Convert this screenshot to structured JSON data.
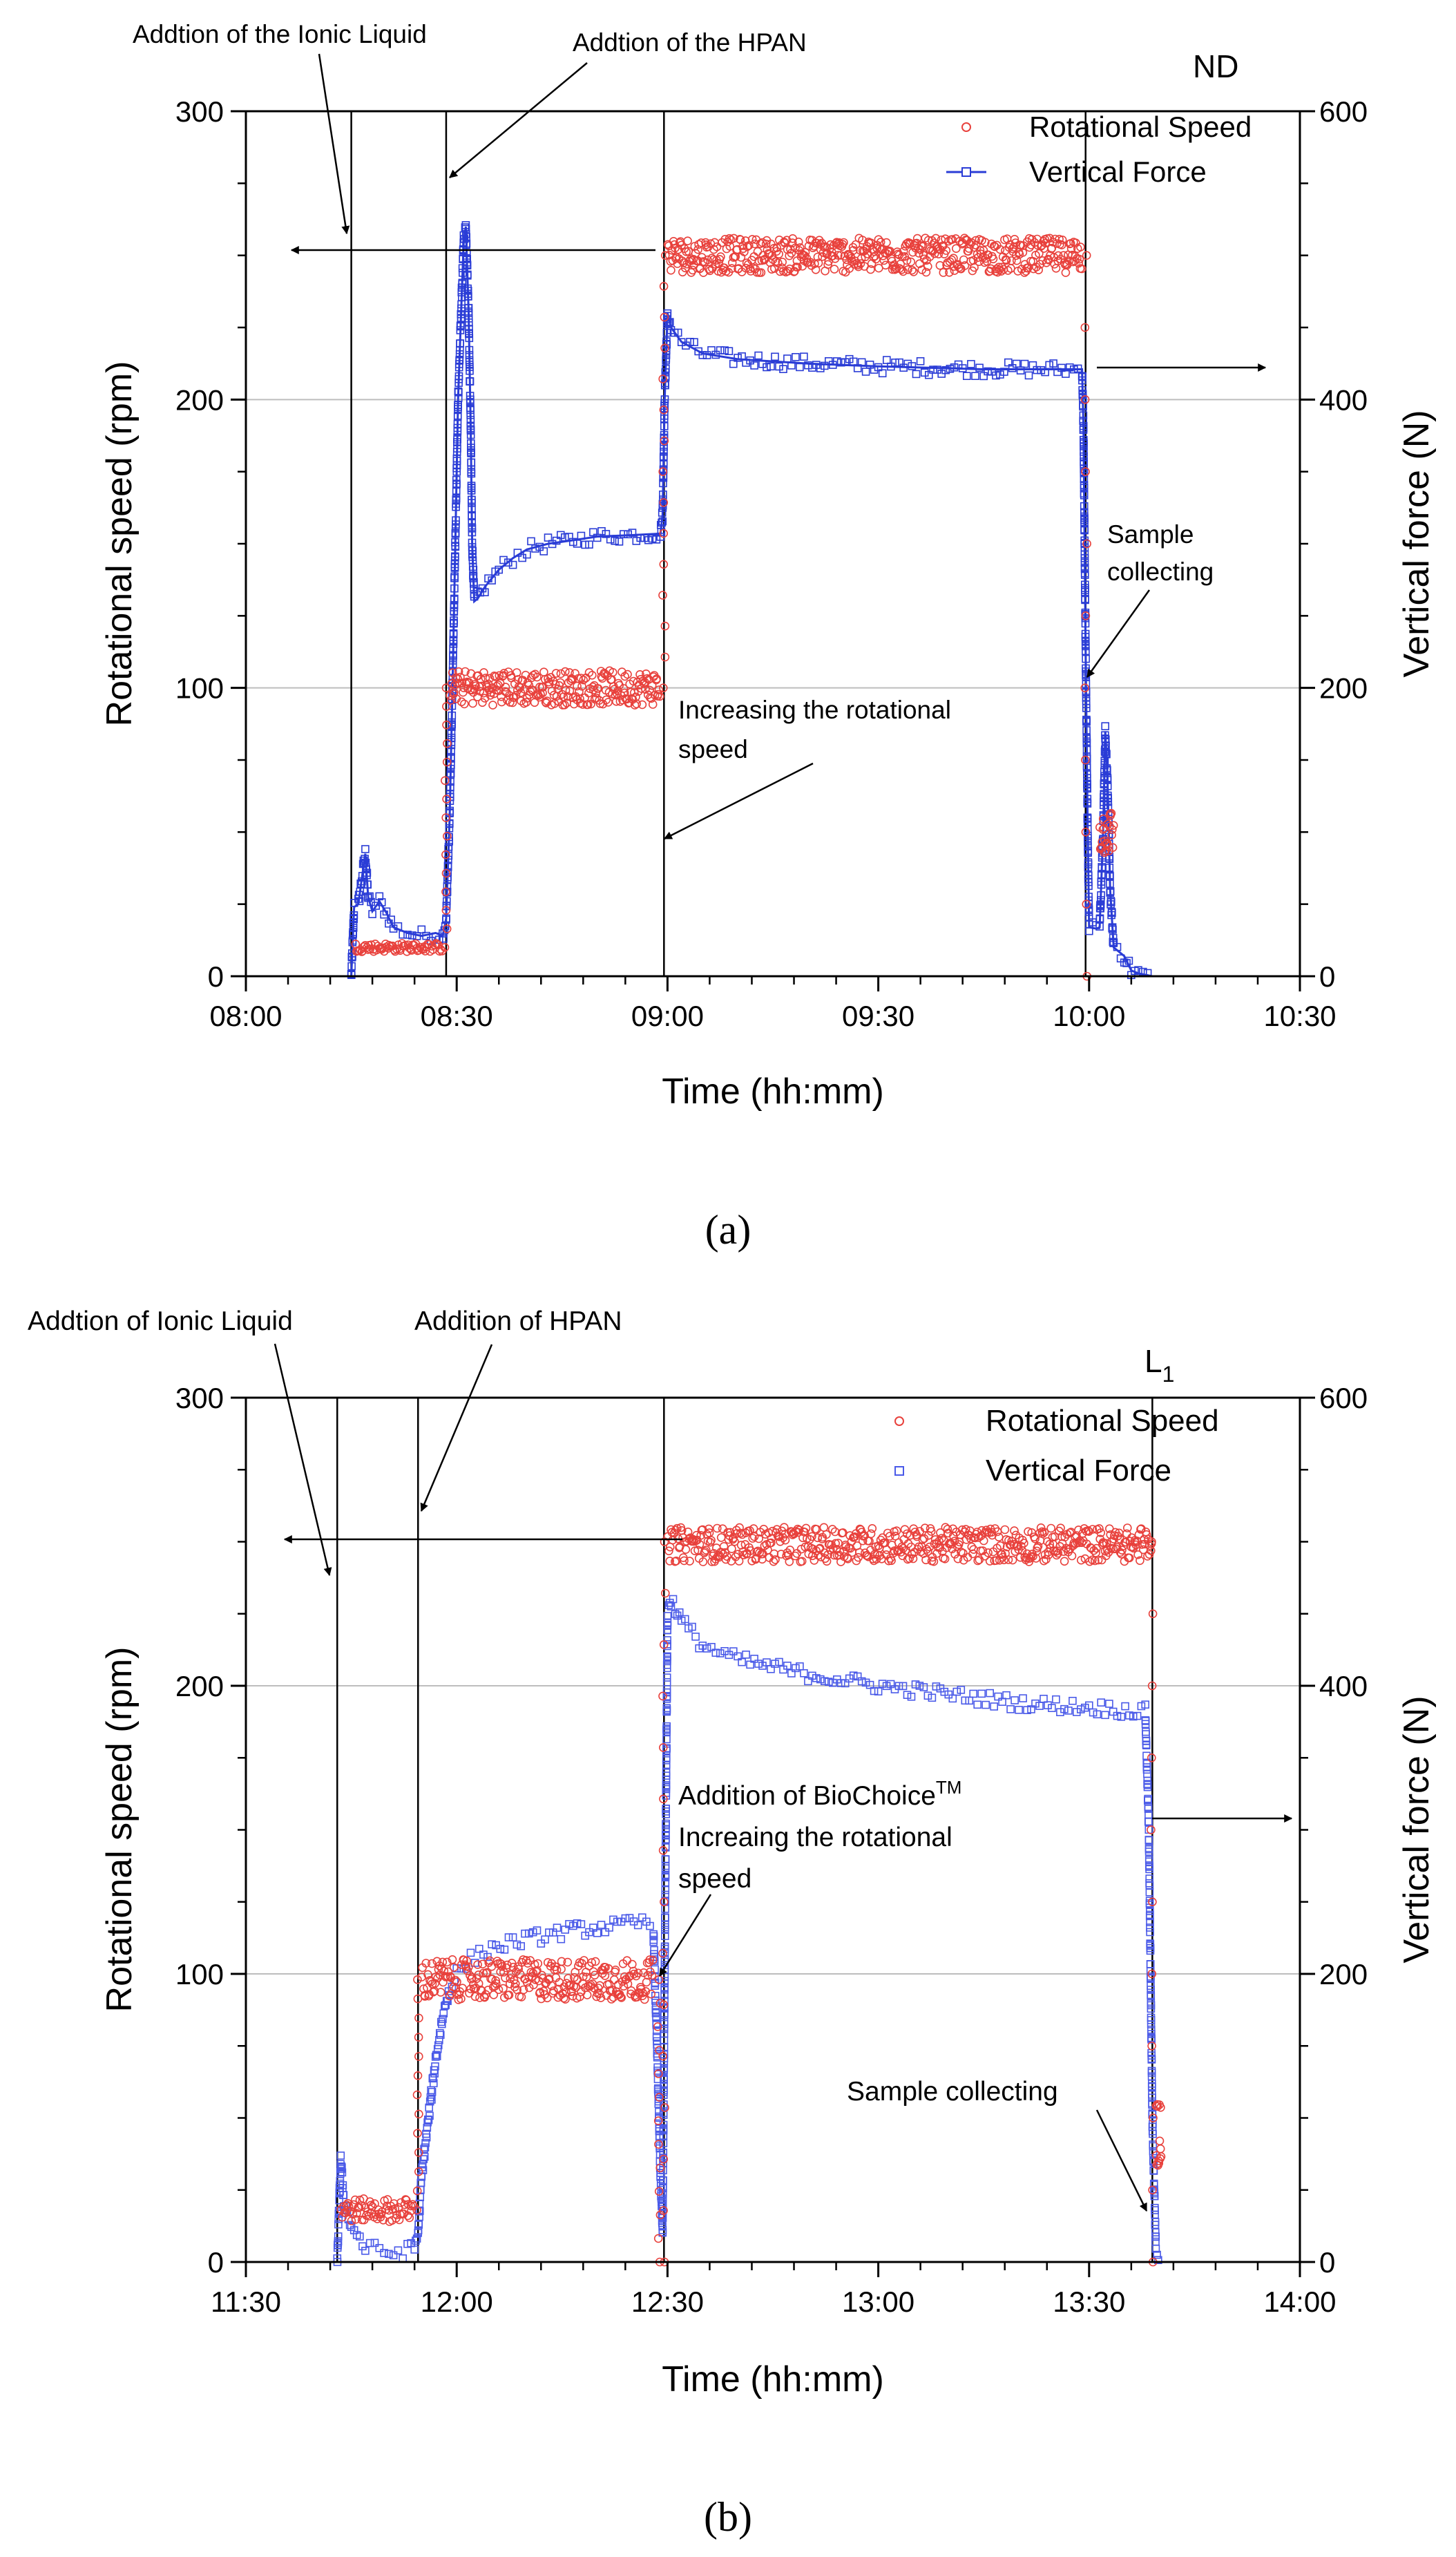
{
  "figure": {
    "panel_a_label": "(a)",
    "panel_b_label": "(b)"
  },
  "chart_data": [
    {
      "type": "scatter",
      "panel": "a",
      "sample_label": "ND",
      "xlabel": "Time (hh:mm)",
      "ylabel": "Rotational speed (rpm)",
      "y2label": "Vertical force (N)",
      "xlim_min": [
        480,
        630
      ],
      "x_ticks": [
        {
          "v": 480,
          "label": "08:00"
        },
        {
          "v": 510,
          "label": "08:30"
        },
        {
          "v": 540,
          "label": "09:00"
        },
        {
          "v": 570,
          "label": "09:30"
        },
        {
          "v": 600,
          "label": "10:00"
        },
        {
          "v": 630,
          "label": "10:30"
        }
      ],
      "ylim": [
        0,
        300
      ],
      "y_ticks": [
        {
          "v": 0,
          "label": "0"
        },
        {
          "v": 100,
          "label": "100"
        },
        {
          "v": 200,
          "label": "200"
        },
        {
          "v": 300,
          "label": "300"
        }
      ],
      "y2lim": [
        0,
        600
      ],
      "y2_ticks": [
        {
          "v": 0,
          "label": "0"
        },
        {
          "v": 200,
          "label": "200"
        },
        {
          "v": 400,
          "label": "400"
        },
        {
          "v": 600,
          "label": "600"
        }
      ],
      "gridlines_y": [
        100,
        200
      ],
      "events_min": [
        495,
        508.5,
        539.5,
        599.5
      ],
      "legend": {
        "position": "top-right",
        "entries": [
          "Rotational Speed",
          "Vertical Force"
        ]
      },
      "series": [
        {
          "name": "Rotational Speed",
          "axis": "left",
          "color": "#e8413c",
          "style": "circles",
          "segments": [
            {
              "x0": 495.5,
              "x1": 508,
              "y": 10,
              "jitter": 1.5,
              "n": 70
            },
            {
              "x0": 509,
              "x1": 539,
              "y": 100,
              "jitter": 6,
              "n": 260
            },
            {
              "x0": 540,
              "x1": 599,
              "y": 250,
              "jitter": 6,
              "n": 520
            },
            {
              "x0": 601.5,
              "x1": 603.5,
              "y": 50,
              "jitter": 8,
              "n": 25
            }
          ],
          "transitions": [
            {
              "x": 508.5,
              "y0": 10,
              "y1": 100,
              "n": 14
            },
            {
              "x": 539.5,
              "y0": 100,
              "y1": 250,
              "n": 14
            },
            {
              "x": 599.5,
              "y0": 250,
              "y1": 0,
              "n": 10
            }
          ]
        },
        {
          "name": "Vertical Force",
          "axis": "right",
          "color": "#2a3cd6",
          "style": "line-squares",
          "points": [
            [
              495,
              0
            ],
            [
              495.4,
              48
            ],
            [
              496,
              50
            ],
            [
              496.5,
              68
            ],
            [
              497,
              85
            ],
            [
              497.4,
              55
            ],
            [
              498,
              45
            ],
            [
              499,
              52
            ],
            [
              500,
              44
            ],
            [
              501,
              34
            ],
            [
              503,
              30
            ],
            [
              505,
              28
            ],
            [
              507,
              30
            ],
            [
              508,
              28
            ],
            [
              508.5,
              40
            ],
            [
              509,
              110
            ],
            [
              509.4,
              200
            ],
            [
              509.8,
              300
            ],
            [
              510.2,
              400
            ],
            [
              510.7,
              470
            ],
            [
              511,
              510
            ],
            [
              511.3,
              520
            ],
            [
              511.7,
              460
            ],
            [
              512,
              380
            ],
            [
              512.2,
              300
            ],
            [
              512.5,
              260
            ],
            [
              513,
              262
            ],
            [
              514,
              270
            ],
            [
              516,
              282
            ],
            [
              518,
              290
            ],
            [
              520,
              296
            ],
            [
              523,
              300
            ],
            [
              526,
              302
            ],
            [
              530,
              305
            ],
            [
              535,
              306
            ],
            [
              539,
              307
            ],
            [
              539.3,
              320
            ],
            [
              539.6,
              400
            ],
            [
              540,
              460
            ],
            [
              540.5,
              450
            ],
            [
              542,
              440
            ],
            [
              545,
              432
            ],
            [
              550,
              428
            ],
            [
              560,
              425
            ],
            [
              570,
              423
            ],
            [
              585,
              421
            ],
            [
              599,
              421
            ],
            [
              599.2,
              380
            ],
            [
              599.5,
              230
            ],
            [
              599.8,
              100
            ],
            [
              600,
              34
            ],
            [
              601,
              33
            ],
            [
              601.5,
              34
            ],
            [
              602,
              100
            ],
            [
              602.3,
              170
            ],
            [
              602.6,
              140
            ],
            [
              603,
              60
            ],
            [
              603.5,
              20
            ],
            [
              604,
              18
            ],
            [
              605,
              14
            ],
            [
              606,
              4
            ],
            [
              607,
              2
            ],
            [
              609,
              0
            ]
          ]
        }
      ],
      "annotations": [
        {
          "text": "Addtion of the Ionic Liquid"
        },
        {
          "text": "Addtion of the HPAN"
        },
        {
          "text": "Sample"
        },
        {
          "text": "collecting"
        },
        {
          "text": "Increasing the rotational"
        },
        {
          "text": "speed"
        }
      ]
    },
    {
      "type": "scatter",
      "panel": "b",
      "sample_label": "L",
      "sample_label_sub": "1",
      "xlabel": "Time (hh:mm)",
      "ylabel": "Rotational speed (rpm)",
      "y2label": "Vertical force (N)",
      "xlim_min": [
        690,
        840
      ],
      "x_ticks": [
        {
          "v": 690,
          "label": "11:30"
        },
        {
          "v": 720,
          "label": "12:00"
        },
        {
          "v": 750,
          "label": "12:30"
        },
        {
          "v": 780,
          "label": "13:00"
        },
        {
          "v": 810,
          "label": "13:30"
        },
        {
          "v": 840,
          "label": "14:00"
        }
      ],
      "ylim": [
        0,
        300
      ],
      "y_ticks": [
        {
          "v": 0,
          "label": "0"
        },
        {
          "v": 100,
          "label": "100"
        },
        {
          "v": 200,
          "label": "200"
        },
        {
          "v": 300,
          "label": "300"
        }
      ],
      "y2lim": [
        0,
        600
      ],
      "y2_ticks": [
        {
          "v": 0,
          "label": "0"
        },
        {
          "v": 200,
          "label": "200"
        },
        {
          "v": 400,
          "label": "400"
        },
        {
          "v": 600,
          "label": "600"
        }
      ],
      "gridlines_y": [
        100,
        200
      ],
      "events_min": [
        703,
        714.5,
        749.5,
        819
      ],
      "legend": {
        "position": "top-right",
        "entries": [
          "Rotational Speed",
          "Vertical Force"
        ]
      },
      "series": [
        {
          "name": "Rotational Speed",
          "axis": "left",
          "color": "#e8413c",
          "style": "circles",
          "segments": [
            {
              "x0": 703.5,
              "x1": 714,
              "y": 18,
              "jitter": 4,
              "n": 70
            },
            {
              "x0": 715,
              "x1": 748,
              "y": 98,
              "jitter": 7,
              "n": 280
            },
            {
              "x0": 750,
              "x1": 819,
              "y": 249,
              "jitter": 6,
              "n": 560
            },
            {
              "x0": 819.5,
              "x1": 820.3,
              "y": 45,
              "jitter": 12,
              "n": 14
            }
          ],
          "transitions": [
            {
              "x": 714.5,
              "y0": 18,
              "y1": 98,
              "n": 12
            },
            {
              "x": 748.8,
              "y0": 98,
              "y1": 0,
              "n": 12
            },
            {
              "x": 749.5,
              "y0": 0,
              "y1": 250,
              "n": 14
            },
            {
              "x": 819,
              "y0": 250,
              "y1": 0,
              "n": 10
            }
          ]
        },
        {
          "name": "Vertical Force",
          "axis": "right",
          "color": "#4a5ae8",
          "style": "squares",
          "points": [
            [
              703,
              0
            ],
            [
              703.5,
              70
            ],
            [
              704,
              40
            ],
            [
              705,
              25
            ],
            [
              707,
              10
            ],
            [
              709,
              8
            ],
            [
              711,
              6
            ],
            [
              713,
              8
            ],
            [
              714,
              10
            ],
            [
              714.5,
              20
            ],
            [
              715,
              60
            ],
            [
              716,
              100
            ],
            [
              717,
              140
            ],
            [
              718,
              170
            ],
            [
              719,
              190
            ],
            [
              720,
              200
            ],
            [
              722,
              210
            ],
            [
              725,
              218
            ],
            [
              728,
              222
            ],
            [
              732,
              226
            ],
            [
              736,
              230
            ],
            [
              740,
              232
            ],
            [
              744,
              234
            ],
            [
              747,
              236
            ],
            [
              748,
              230
            ],
            [
              748.5,
              150
            ],
            [
              749,
              60
            ],
            [
              749.3,
              20
            ],
            [
              749.6,
              200
            ],
            [
              750,
              450
            ],
            [
              750.5,
              460
            ],
            [
              752,
              445
            ],
            [
              755,
              428
            ],
            [
              760,
              418
            ],
            [
              770,
              408
            ],
            [
              780,
              400
            ],
            [
              790,
              394
            ],
            [
              800,
              388
            ],
            [
              810,
              385
            ],
            [
              818,
              382
            ],
            [
              818.5,
              300
            ],
            [
              819,
              100
            ],
            [
              819.5,
              10
            ],
            [
              820,
              2
            ]
          ]
        }
      ],
      "annotations": [
        {
          "text": "Addtion of Ionic Liquid"
        },
        {
          "text": "Addition of HPAN"
        },
        {
          "text": "Addition of BioChoice"
        },
        {
          "text": "TM"
        },
        {
          "text": "Increaing the rotational"
        },
        {
          "text": "speed"
        },
        {
          "text": "Sample collecting"
        }
      ]
    }
  ]
}
